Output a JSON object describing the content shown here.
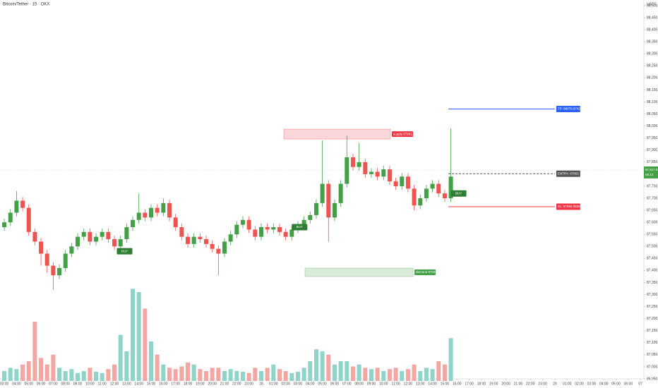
{
  "chart_data": {
    "type": "candlestick",
    "title": "Bitcoin/Tether · 15 · OKX",
    "y_unit": "USDT",
    "xlim": [
      2.65,
      55.45
    ],
    "xticks": [
      {
        "value": 3,
        "label": "03:00"
      },
      {
        "value": 4,
        "label": "04:00"
      },
      {
        "value": 5,
        "label": "05:00"
      },
      {
        "value": 6,
        "label": "06:00"
      },
      {
        "value": 7,
        "label": "07:00"
      },
      {
        "value": 8,
        "label": "08:00"
      },
      {
        "value": 9,
        "label": "09:00"
      },
      {
        "value": 10,
        "label": "10:00"
      },
      {
        "value": 11,
        "label": "11:00"
      },
      {
        "value": 12,
        "label": "12:00"
      },
      {
        "value": 13,
        "label": "13:00"
      },
      {
        "value": 14,
        "label": "14:00"
      },
      {
        "value": 15,
        "label": "15:00"
      },
      {
        "value": 16,
        "label": "16:00"
      },
      {
        "value": 17,
        "label": "17:00"
      },
      {
        "value": 18,
        "label": "18:00"
      },
      {
        "value": 19,
        "label": "19:00"
      },
      {
        "value": 20,
        "label": "20:00"
      },
      {
        "value": 21,
        "label": "21:00"
      },
      {
        "value": 22,
        "label": "22:00"
      },
      {
        "value": 23,
        "label": "23:00"
      },
      {
        "value": 24,
        "label": "28"
      },
      {
        "value": 25,
        "label": "01:00"
      },
      {
        "value": 26,
        "label": "02:00"
      },
      {
        "value": 27,
        "label": "03:00"
      },
      {
        "value": 28,
        "label": "04:00"
      },
      {
        "value": 29,
        "label": "05:00"
      },
      {
        "value": 30,
        "label": "06:00"
      },
      {
        "value": 31,
        "label": "07:00"
      },
      {
        "value": 32,
        "label": "08:00"
      },
      {
        "value": 33,
        "label": "09:00"
      },
      {
        "value": 34,
        "label": "10:00"
      },
      {
        "value": 35,
        "label": "11:00"
      },
      {
        "value": 36,
        "label": "12:00"
      },
      {
        "value": 37,
        "label": "13:00"
      },
      {
        "value": 38,
        "label": "14:00"
      },
      {
        "value": 39,
        "label": "15:00"
      },
      {
        "value": 40,
        "label": "16:00"
      },
      {
        "value": 41,
        "label": "17:00"
      },
      {
        "value": 42,
        "label": "18:00"
      },
      {
        "value": 43,
        "label": "19:00"
      },
      {
        "value": 44,
        "label": "20:00"
      },
      {
        "value": 45,
        "label": "21:00"
      },
      {
        "value": 46,
        "label": "22:00"
      },
      {
        "value": 47,
        "label": "23:00"
      },
      {
        "value": 48,
        "label": "29"
      },
      {
        "value": 49,
        "label": "01:00"
      },
      {
        "value": 50,
        "label": "02:00"
      },
      {
        "value": 51,
        "label": "03:00"
      },
      {
        "value": 52,
        "label": "04:00"
      },
      {
        "value": 53,
        "label": "05:00"
      },
      {
        "value": 54,
        "label": "06:00"
      },
      {
        "value": 55,
        "label": "07"
      }
    ],
    "ylim": [
      86950,
      88500
    ],
    "yticks": [
      {
        "value": 88500,
        "label": "88,500.0"
      },
      {
        "value": 88450,
        "label": "88,450.0"
      },
      {
        "value": 88400,
        "label": "88,400.0"
      },
      {
        "value": 88350,
        "label": "88,350.0"
      },
      {
        "value": 88300,
        "label": "88,300.0"
      },
      {
        "value": 88250,
        "label": "88,250.0"
      },
      {
        "value": 88200,
        "label": "88,200.0"
      },
      {
        "value": 88150,
        "label": "88,150.0"
      },
      {
        "value": 88100,
        "label": "88,100.0"
      },
      {
        "value": 88050,
        "label": "88,050.0"
      },
      {
        "value": 88000,
        "label": "88,000.0"
      },
      {
        "value": 87950,
        "label": "87,950.0"
      },
      {
        "value": 87900,
        "label": "87,900.0"
      },
      {
        "value": 87850,
        "label": "87,850.0"
      },
      {
        "value": 87750,
        "label": "87,750.0"
      },
      {
        "value": 87700,
        "label": "87,700.0"
      },
      {
        "value": 87650,
        "label": "87,650.0"
      },
      {
        "value": 87600,
        "label": "87,600.0"
      },
      {
        "value": 87550,
        "label": "87,550.0"
      },
      {
        "value": 87500,
        "label": "87,500.0"
      },
      {
        "value": 87450,
        "label": "87,450.0"
      },
      {
        "value": 87400,
        "label": "87,400.0"
      },
      {
        "value": 87350,
        "label": "87,350.0"
      },
      {
        "value": 87300,
        "label": "87,300.0"
      },
      {
        "value": 87250,
        "label": "87,250.0"
      },
      {
        "value": 87200,
        "label": "87,200.0"
      },
      {
        "value": 87150,
        "label": "87,150.0"
      },
      {
        "value": 87100,
        "label": "87,100.0"
      },
      {
        "value": 87050,
        "label": "87,050.0"
      },
      {
        "value": 87000,
        "label": "87,000.0"
      },
      {
        "value": 86950,
        "label": "86,950.0"
      }
    ],
    "up_color": "#43a047",
    "down_color": "#ef5350",
    "x": [
      3,
      3.5,
      4,
      4.5,
      5,
      5.5,
      6,
      6.5,
      7,
      7.5,
      8,
      8.5,
      9,
      9.5,
      10,
      10.5,
      11,
      11.5,
      12,
      12.5,
      13,
      13.5,
      14,
      14.5,
      15,
      15.5,
      16,
      16.5,
      17,
      17.5,
      18,
      18.5,
      19,
      19.5,
      20,
      20.5,
      21,
      21.5,
      22,
      22.5,
      23,
      23.5,
      24,
      24.5,
      25,
      25.5,
      26,
      26.5,
      27,
      27.5,
      28,
      28.5,
      29,
      29.5,
      30,
      30.5,
      31,
      31.5,
      32,
      32.5,
      33,
      33.5,
      34,
      34.5,
      35,
      35.5,
      36,
      36.5,
      37,
      37.5,
      38,
      38.5,
      39,
      39.5
    ],
    "open": [
      87580,
      87600,
      87640,
      87690,
      87660,
      87560,
      87520,
      87470,
      87420,
      87380,
      87410,
      87470,
      87500,
      87540,
      87560,
      87520,
      87540,
      87560,
      87530,
      87500,
      87530,
      87580,
      87610,
      87640,
      87620,
      87660,
      87640,
      87680,
      87620,
      87580,
      87540,
      87510,
      87540,
      87530,
      87510,
      87490,
      87470,
      87520,
      87550,
      87590,
      87610,
      87570,
      87540,
      87580,
      87570,
      87580,
      87560,
      87540,
      87570,
      87590,
      87610,
      87630,
      87680,
      87760,
      87620,
      87680,
      87760,
      87870,
      87830,
      87850,
      87800,
      87810,
      87790,
      87820,
      87770,
      87750,
      87790,
      87740,
      87670,
      87700,
      87740,
      87760,
      87720,
      87700
    ],
    "high": [
      87615,
      87655,
      87730,
      87705,
      87675,
      87575,
      87535,
      87485,
      87435,
      87425,
      87485,
      87515,
      87555,
      87575,
      87575,
      87555,
      87575,
      87575,
      87545,
      87545,
      87595,
      87625,
      87720,
      87655,
      87675,
      87675,
      87700,
      87695,
      87635,
      87595,
      87555,
      87555,
      87555,
      87545,
      87525,
      87505,
      87535,
      87565,
      87605,
      87625,
      87625,
      87585,
      87595,
      87595,
      87595,
      87595,
      87575,
      87585,
      87605,
      87625,
      87645,
      87695,
      87940,
      87775,
      87695,
      87775,
      87960,
      87885,
      87930,
      87865,
      87825,
      87825,
      87835,
      87835,
      87785,
      87805,
      87805,
      87755,
      87715,
      87755,
      87775,
      87775,
      87735,
      87990
    ],
    "low": [
      87565,
      87585,
      87625,
      87645,
      87545,
      87505,
      87420,
      87390,
      87320,
      87365,
      87395,
      87455,
      87485,
      87525,
      87505,
      87505,
      87525,
      87515,
      87485,
      87485,
      87515,
      87565,
      87595,
      87605,
      87605,
      87625,
      87625,
      87605,
      87565,
      87525,
      87495,
      87495,
      87515,
      87495,
      87475,
      87380,
      87455,
      87505,
      87535,
      87575,
      87555,
      87525,
      87525,
      87555,
      87555,
      87545,
      87525,
      87525,
      87555,
      87575,
      87595,
      87615,
      87665,
      87520,
      87605,
      87665,
      87745,
      87815,
      87815,
      87785,
      87785,
      87775,
      87775,
      87755,
      87735,
      87735,
      87725,
      87650,
      87655,
      87685,
      87725,
      87705,
      87685,
      87685
    ],
    "close": [
      87600,
      87640,
      87690,
      87660,
      87560,
      87520,
      87470,
      87420,
      87380,
      87410,
      87470,
      87500,
      87540,
      87560,
      87520,
      87540,
      87560,
      87530,
      87500,
      87530,
      87580,
      87610,
      87640,
      87620,
      87660,
      87640,
      87680,
      87620,
      87580,
      87540,
      87510,
      87540,
      87530,
      87510,
      87490,
      87470,
      87520,
      87550,
      87590,
      87610,
      87570,
      87540,
      87580,
      87570,
      87580,
      87560,
      87540,
      87570,
      87590,
      87610,
      87630,
      87680,
      87760,
      87620,
      87680,
      87760,
      87870,
      87830,
      87850,
      87800,
      87810,
      87790,
      87820,
      87770,
      87750,
      87790,
      87740,
      87670,
      87700,
      87740,
      87760,
      87720,
      87700,
      87790
    ],
    "volume": [
      15,
      20,
      18,
      25,
      30,
      90,
      35,
      25,
      40,
      20,
      15,
      18,
      12,
      15,
      20,
      14,
      12,
      18,
      25,
      70,
      45,
      140,
      135,
      110,
      60,
      40,
      25,
      20,
      18,
      22,
      28,
      25,
      18,
      15,
      20,
      20,
      15,
      18,
      15,
      14,
      12,
      20,
      15,
      20,
      25,
      18,
      15,
      12,
      14,
      20,
      30,
      48,
      45,
      40,
      25,
      30,
      30,
      22,
      25,
      20,
      18,
      20,
      15,
      18,
      20,
      15,
      18,
      25,
      15,
      20,
      18,
      30,
      25,
      65
    ],
    "vlim": [
      0,
      150
    ],
    "volume_up_color": "#8fd3c9",
    "volume_down_color": "#f4a6a3",
    "levels": [
      {
        "name": "TP: 88070.87421",
        "value": 88070.87421,
        "color": "#2962ff",
        "dashed": false
      },
      {
        "name": "ENTRY: 87802",
        "value": 87802,
        "color": "#555555",
        "dashed": true
      },
      {
        "name": "SL: 87665.08356",
        "value": 87665.08356,
        "color": "#f23645",
        "dashed": false
      }
    ],
    "level_start": 39.3,
    "level_end": 48.0,
    "zones": [
      {
        "label": "supply 87961.4",
        "x0": 25.85,
        "x1": 34.56,
        "bottom": 87946,
        "top": 87987,
        "color": "#f23645"
      },
      {
        "label": "demand 87345.3",
        "x0": 27.58,
        "x1": 36.41,
        "bottom": 87375,
        "top": 87410,
        "color": "#43a047"
      }
    ],
    "signals": [
      {
        "text": "BUY",
        "x": 12.2,
        "price": 87480
      },
      {
        "text": "BUY",
        "x": 26.5,
        "price": 87580
      },
      {
        "text": "BUY",
        "x": 39.5,
        "price": 87720
      }
    ],
    "last_price": {
      "value": 87817.5,
      "label": "87,817.5"
    },
    "countdown": "06:13"
  }
}
